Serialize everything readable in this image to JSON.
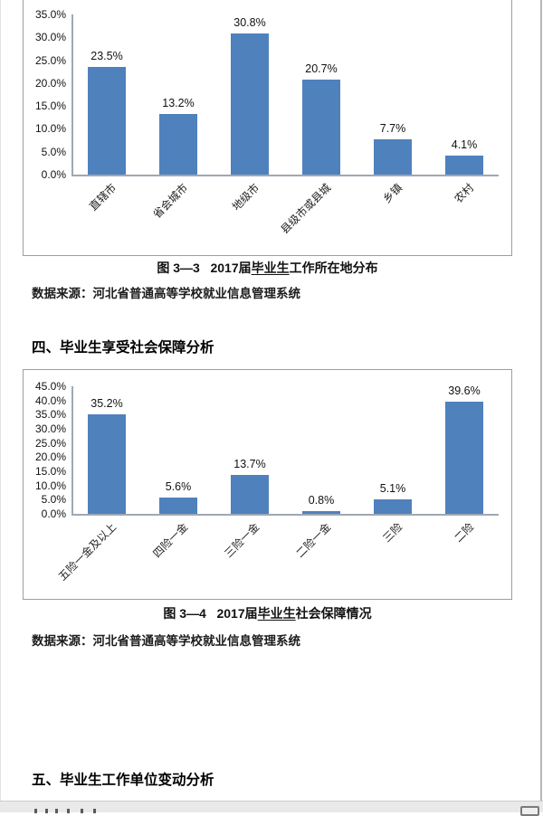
{
  "sections": {
    "section4_heading": "四、毕业生享受社会保障分析",
    "section5_heading": "五、毕业生工作单位变动分析"
  },
  "figure1": {
    "label": "图 3—3",
    "title_pre": "2017届",
    "title_underlined": "毕业生",
    "title_post": "工作所在地分布",
    "source": "数据来源：河北省普通高等学校就业信息管理系统"
  },
  "figure2": {
    "label": "图 3—4",
    "title_pre": "2017届",
    "title_underlined": "毕业生",
    "title_post": "社会保障情况",
    "source": "数据来源：河北省普通高等学校就业信息管理系统"
  },
  "colors": {
    "bar": "#4F81BD",
    "axis": "#9fa8b4",
    "chart_border": "#9e9e9e"
  },
  "chart_data": [
    {
      "type": "bar",
      "title": "图 3—3 2017届毕业生工作所在地分布",
      "categories": [
        "直辖市",
        "省会城市",
        "地级市",
        "县级市或县城",
        "乡镇",
        "农村"
      ],
      "values": [
        23.5,
        13.2,
        30.8,
        20.7,
        7.7,
        4.1
      ],
      "value_labels": [
        "23.5%",
        "13.2%",
        "30.8%",
        "20.7%",
        "7.7%",
        "4.1%"
      ],
      "ylabel": "",
      "xlabel": "",
      "ylim": [
        0,
        35
      ],
      "ytick_step": 5,
      "ytick_suffix": "%",
      "grid": false,
      "legend": "none",
      "bar_color": "#4F81BD"
    },
    {
      "type": "bar",
      "title": "图 3—4 2017届毕业生社会保障情况",
      "categories": [
        "五险一金及以上",
        "四险一金",
        "三险一金",
        "二险一金",
        "三险",
        "二险"
      ],
      "values": [
        35.2,
        5.6,
        13.7,
        0.8,
        5.1,
        39.6
      ],
      "value_labels": [
        "35.2%",
        "5.6%",
        "13.7%",
        "0.8%",
        "5.1%",
        "39.6%"
      ],
      "ylabel": "",
      "xlabel": "",
      "ylim": [
        0,
        45
      ],
      "ytick_step": 5,
      "ytick_suffix": "%",
      "grid": false,
      "legend": "none",
      "bar_color": "#4F81BD"
    }
  ]
}
